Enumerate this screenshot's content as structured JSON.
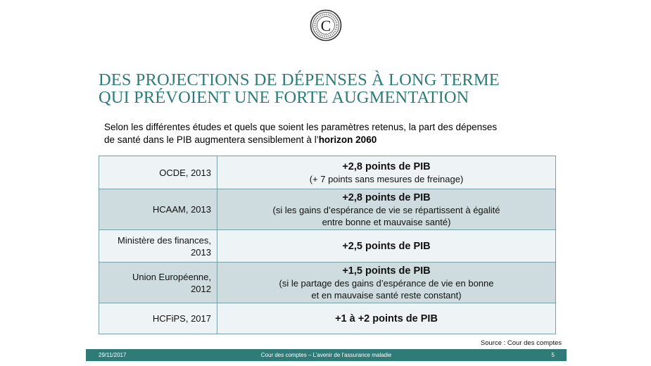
{
  "title": {
    "line1": "DES PROJECTIONS DE DÉPENSES À LONG TERME",
    "line2": "QUI PRÉVOIENT UNE FORTE AUGMENTATION"
  },
  "intro": {
    "line1": "Selon les différentes études et quels que soient les paramètres retenus, la part des dépenses",
    "line2_start": "de santé dans le PIB augmentera sensiblement à l’",
    "line2_bold": "horizon 2060"
  },
  "rows": [
    {
      "source": "OCDE, 2013",
      "main": "+2,8 points de PIB",
      "sub": "(+ 7 points sans mesures de freinage)"
    },
    {
      "source": "HCAAM, 2013",
      "main": "+2,8 points de PIB",
      "sub_line1": "(si les gains d’espérance de vie se répartissent à égalité",
      "sub_line2": "entre bonne et mauvaise santé)"
    },
    {
      "source_line1": "Ministère des finances,",
      "source_line2": "2013",
      "main": "+2,5 points de PIB"
    },
    {
      "source_line1": "Union Européenne,",
      "source_line2": "2012",
      "main": "+1,5 points de PIB",
      "sub_line1": "(si le partage des gains d’espérance de vie en bonne",
      "sub_line2": "et en mauvaise santé reste constant)"
    },
    {
      "source": "HCFiPS, 2017",
      "main": "+1 à +2 points de PIB"
    }
  ],
  "source_note": "Source :  Cour des comptes",
  "footer": {
    "date": "29/11/2017",
    "center": "Cour des comptes – L’avenir de l’assurance maladie",
    "page": "5"
  },
  "colors": {
    "accent": "#2e7b78",
    "row_light": "#eef4f5",
    "row_dark": "#cedcdf"
  },
  "logo": {
    "letter": "C",
    "icon": "cour-des-comptes-emblem"
  }
}
